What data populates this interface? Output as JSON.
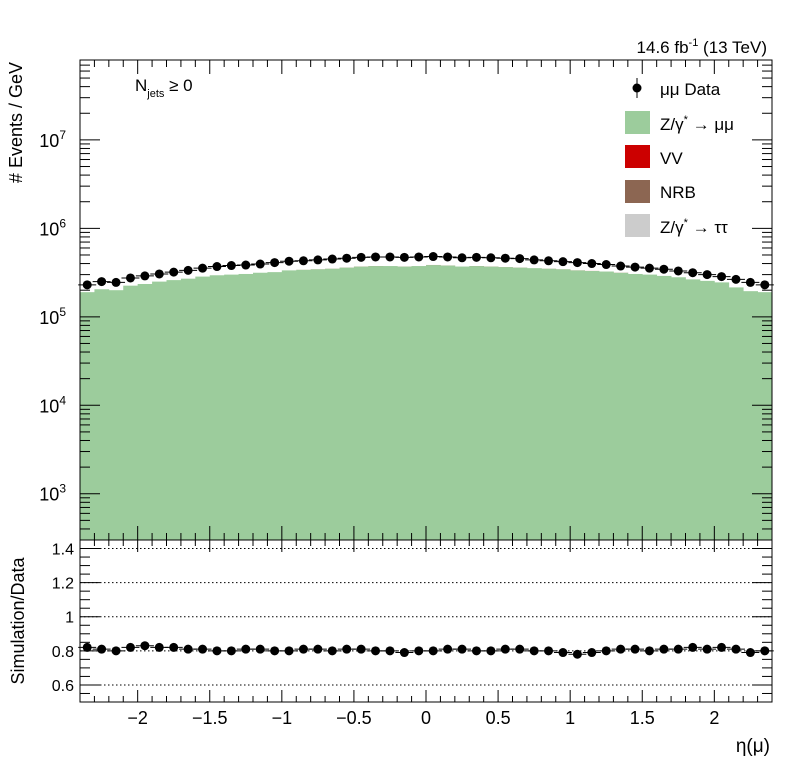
{
  "header": {
    "lumi_prefix": "14.6 fb",
    "lumi_exp": "-1",
    "lumi_suffix": " (13 TeV)"
  },
  "annotation": {
    "main": "N",
    "sub": "jets",
    "rest": " ≥ 0"
  },
  "legend": {
    "placement": "top-right",
    "entries": [
      {
        "key": "data",
        "label": "μμ Data",
        "symbol": "marker",
        "color": "#000000"
      },
      {
        "key": "zmm",
        "label": "Z/γ",
        "sup": "*",
        "label2": " → μμ",
        "symbol": "box",
        "color": "#9ccc9c"
      },
      {
        "key": "vv",
        "label": "VV",
        "symbol": "box",
        "color": "#cc0000"
      },
      {
        "key": "nrb",
        "label": "NRB",
        "symbol": "box",
        "color": "#8c6652"
      },
      {
        "key": "ztt",
        "label": "Z/γ",
        "sup": "*",
        "label2": " → ττ",
        "symbol": "box",
        "color": "#cccccc"
      }
    ]
  },
  "chart_data": [
    {
      "type": "bar",
      "stacked": true,
      "log_y": true,
      "ylabel": "# Events / GeV",
      "ylim": [
        300,
        80000000
      ],
      "xlim": [
        -2.4,
        2.4
      ],
      "y_ticks": [
        {
          "value": 1000,
          "mant": "10",
          "exp": "3"
        },
        {
          "value": 10000,
          "mant": "10",
          "exp": "4"
        },
        {
          "value": 100000,
          "mant": "10",
          "exp": "5"
        },
        {
          "value": 1000000,
          "mant": "10",
          "exp": "6"
        },
        {
          "value": 10000000,
          "mant": "10",
          "exp": "7"
        }
      ],
      "bin_width": 0.1,
      "bins_lo": [
        -2.4,
        -2.3,
        -2.2,
        -2.1,
        -2.0,
        -1.9,
        -1.8,
        -1.7,
        -1.6,
        -1.5,
        -1.4,
        -1.3,
        -1.2,
        -1.1,
        -1.0,
        -0.9,
        -0.8,
        -0.7,
        -0.6,
        -0.5,
        -0.4,
        -0.3,
        -0.2,
        -0.1,
        0.0,
        0.1,
        0.2,
        0.3,
        0.4,
        0.5,
        0.6,
        0.7,
        0.8,
        0.9,
        1.0,
        1.1,
        1.2,
        1.3,
        1.4,
        1.5,
        1.6,
        1.7,
        1.8,
        1.9,
        2.0,
        2.1,
        2.2,
        2.3
      ],
      "series": [
        {
          "key": "zmm",
          "name": "Z/γ* → μμ",
          "color": "#9ccc9c",
          "values": [
            190000,
            205000,
            200000,
            225000,
            235000,
            250000,
            260000,
            270000,
            285000,
            295000,
            300000,
            305000,
            315000,
            320000,
            335000,
            340000,
            345000,
            350000,
            360000,
            370000,
            375000,
            375000,
            370000,
            375000,
            385000,
            380000,
            370000,
            375000,
            370000,
            365000,
            360000,
            355000,
            350000,
            345000,
            335000,
            330000,
            325000,
            315000,
            305000,
            300000,
            290000,
            280000,
            265000,
            255000,
            245000,
            215000,
            195000,
            190000
          ]
        },
        {
          "key": "vv",
          "name": "VV",
          "color": "#cc0000",
          "values": [
            0,
            0,
            0,
            0,
            0,
            0,
            0,
            0,
            0,
            0,
            0,
            0,
            0,
            0,
            0,
            320,
            370,
            390,
            330,
            440,
            380,
            0,
            350,
            0,
            460,
            370,
            0,
            360,
            480,
            420,
            400,
            0,
            350,
            360,
            410,
            410,
            0,
            380,
            0,
            0,
            0,
            0,
            0,
            0,
            0,
            0,
            0,
            0
          ]
        }
      ],
      "data_points": {
        "name": "μμ Data",
        "x": [
          -2.35,
          -2.25,
          -2.15,
          -2.05,
          -1.95,
          -1.85,
          -1.75,
          -1.65,
          -1.55,
          -1.45,
          -1.35,
          -1.25,
          -1.15,
          -1.05,
          -0.95,
          -0.85,
          -0.75,
          -0.65,
          -0.55,
          -0.45,
          -0.35,
          -0.25,
          -0.15,
          -0.05,
          0.05,
          0.15,
          0.25,
          0.35,
          0.45,
          0.55,
          0.65,
          0.75,
          0.85,
          0.95,
          1.05,
          1.15,
          1.25,
          1.35,
          1.45,
          1.55,
          1.65,
          1.75,
          1.85,
          1.95,
          2.05,
          2.15,
          2.25,
          2.35
        ],
        "y": [
          230000,
          250000,
          245000,
          275000,
          290000,
          305000,
          320000,
          335000,
          355000,
          370000,
          380000,
          385000,
          395000,
          410000,
          425000,
          430000,
          440000,
          450000,
          460000,
          470000,
          475000,
          475000,
          470000,
          475000,
          480000,
          475000,
          465000,
          470000,
          465000,
          460000,
          455000,
          440000,
          430000,
          420000,
          410000,
          400000,
          390000,
          375000,
          365000,
          355000,
          345000,
          330000,
          315000,
          300000,
          285000,
          265000,
          245000,
          230000
        ]
      }
    },
    {
      "type": "scatter",
      "ylabel": "Simulation/Data",
      "xlabel": "η(μ)",
      "xlim": [
        -2.4,
        2.4
      ],
      "ylim": [
        0.5,
        1.45
      ],
      "y_ticks": [
        "0.6",
        "0.8",
        "1",
        "1.2",
        "1.4"
      ],
      "x_ticks": [
        "−2",
        "−1.5",
        "−1",
        "−0.5",
        "0",
        "0.5",
        "1",
        "1.5",
        "2"
      ],
      "x_tick_values": [
        -2,
        -1.5,
        -1,
        -0.5,
        0,
        0.5,
        1,
        1.5,
        2
      ],
      "gridlines": [
        0.6,
        0.8,
        1.0,
        1.2,
        1.4
      ],
      "x": [
        -2.35,
        -2.25,
        -2.15,
        -2.05,
        -1.95,
        -1.85,
        -1.75,
        -1.65,
        -1.55,
        -1.45,
        -1.35,
        -1.25,
        -1.15,
        -1.05,
        -0.95,
        -0.85,
        -0.75,
        -0.65,
        -0.55,
        -0.45,
        -0.35,
        -0.25,
        -0.15,
        -0.05,
        0.05,
        0.15,
        0.25,
        0.35,
        0.45,
        0.55,
        0.65,
        0.75,
        0.85,
        0.95,
        1.05,
        1.15,
        1.25,
        1.35,
        1.45,
        1.55,
        1.65,
        1.75,
        1.85,
        1.95,
        2.05,
        2.15,
        2.25,
        2.35
      ],
      "y": [
        0.82,
        0.81,
        0.8,
        0.82,
        0.83,
        0.82,
        0.82,
        0.81,
        0.81,
        0.8,
        0.8,
        0.81,
        0.81,
        0.8,
        0.8,
        0.81,
        0.81,
        0.8,
        0.81,
        0.81,
        0.8,
        0.8,
        0.79,
        0.8,
        0.8,
        0.81,
        0.81,
        0.8,
        0.8,
        0.81,
        0.81,
        0.8,
        0.8,
        0.79,
        0.78,
        0.79,
        0.8,
        0.81,
        0.81,
        0.8,
        0.81,
        0.81,
        0.82,
        0.81,
        0.82,
        0.81,
        0.79,
        0.8
      ]
    }
  ]
}
